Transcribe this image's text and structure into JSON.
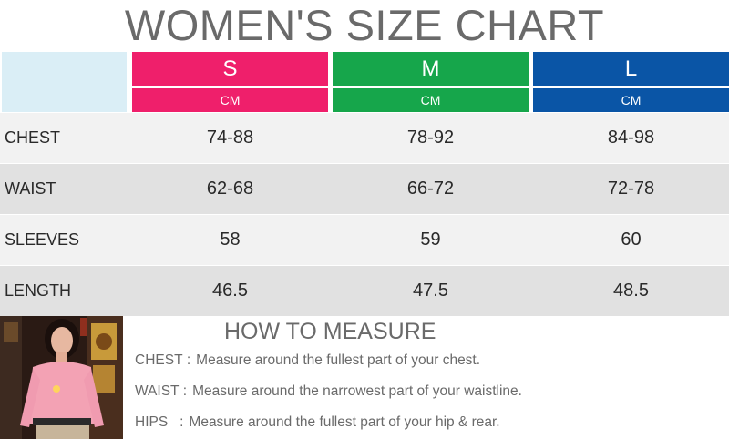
{
  "title": "WOMEN'S SIZE CHART",
  "sizes": [
    {
      "name": "S",
      "unit": "CM",
      "color": "#ef1f6b"
    },
    {
      "name": "M",
      "unit": "CM",
      "color": "#16a64b"
    },
    {
      "name": "L",
      "unit": "CM",
      "color": "#0a55a6"
    }
  ],
  "rows": [
    {
      "label": "CHEST",
      "values": [
        "74-88",
        "78-92",
        "84-98"
      ]
    },
    {
      "label": "WAIST",
      "values": [
        "62-68",
        "66-72",
        "72-78"
      ]
    },
    {
      "label": "SLEEVES",
      "values": [
        "58",
        "59",
        "60"
      ]
    },
    {
      "label": "LENGTH",
      "values": [
        "46.5",
        "47.5",
        "48.5"
      ]
    }
  ],
  "how_to_measure": {
    "title": "HOW TO MEASURE",
    "items": [
      {
        "key": "CHEST :",
        "desc": "Measure around the fullest part of your chest."
      },
      {
        "key": "WAIST :",
        "desc": "Measure around the narrowest part of your waistline."
      },
      {
        "key": "HIPS   :",
        "desc": "Measure around the fullest part of your hip & rear."
      }
    ]
  }
}
